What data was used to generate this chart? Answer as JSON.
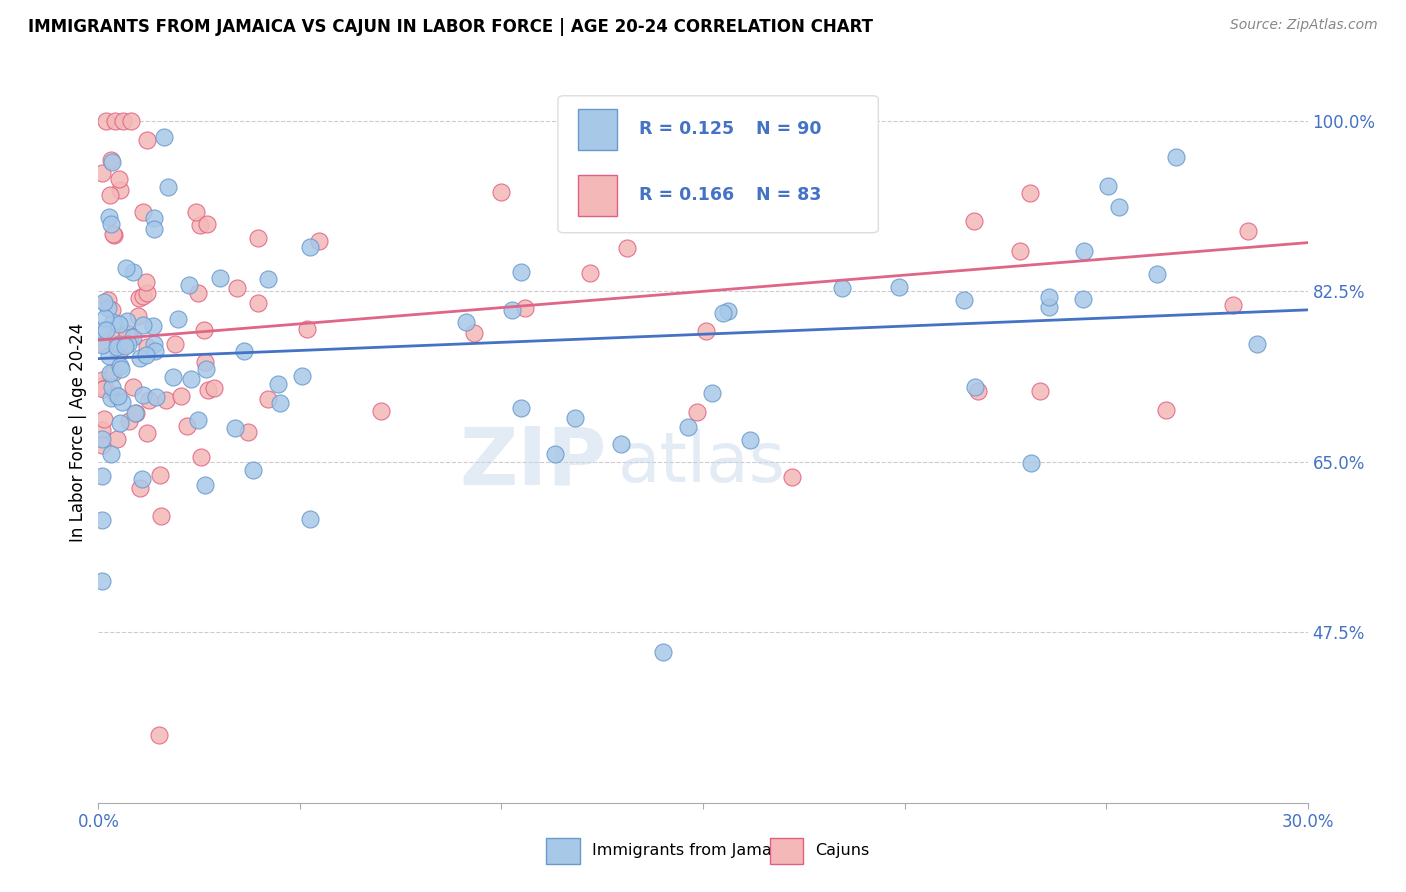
{
  "title": "IMMIGRANTS FROM JAMAICA VS CAJUN IN LABOR FORCE | AGE 20-24 CORRELATION CHART",
  "source_text": "Source: ZipAtlas.com",
  "ylabel": "In Labor Force | Age 20-24",
  "xlim": [
    0.0,
    0.3
  ],
  "ylim": [
    0.3,
    1.06
  ],
  "xticks": [
    0.0,
    0.05,
    0.1,
    0.15,
    0.2,
    0.25,
    0.3
  ],
  "xticklabels": [
    "0.0%",
    "",
    "",
    "",
    "",
    "",
    "30.0%"
  ],
  "ytick_positions": [
    0.475,
    0.65,
    0.825,
    1.0
  ],
  "ytick_labels": [
    "47.5%",
    "65.0%",
    "82.5%",
    "100.0%"
  ],
  "color_blue": "#a8c8e8",
  "color_blue_edge": "#6699cc",
  "color_pink": "#f4b8b8",
  "color_pink_edge": "#e06080",
  "color_line_blue": "#4472c4",
  "color_line_pink": "#e06688",
  "color_axis": "#4472c4",
  "watermark_zip": "ZIP",
  "watermark_atlas": "atlas",
  "legend_items": [
    {
      "r": "R = 0.125",
      "n": "N = 90",
      "color": "#a8c8e8",
      "edge": "#6699cc"
    },
    {
      "r": "R = 0.166",
      "n": "N = 83",
      "color": "#f4b8b8",
      "edge": "#e06080"
    }
  ]
}
